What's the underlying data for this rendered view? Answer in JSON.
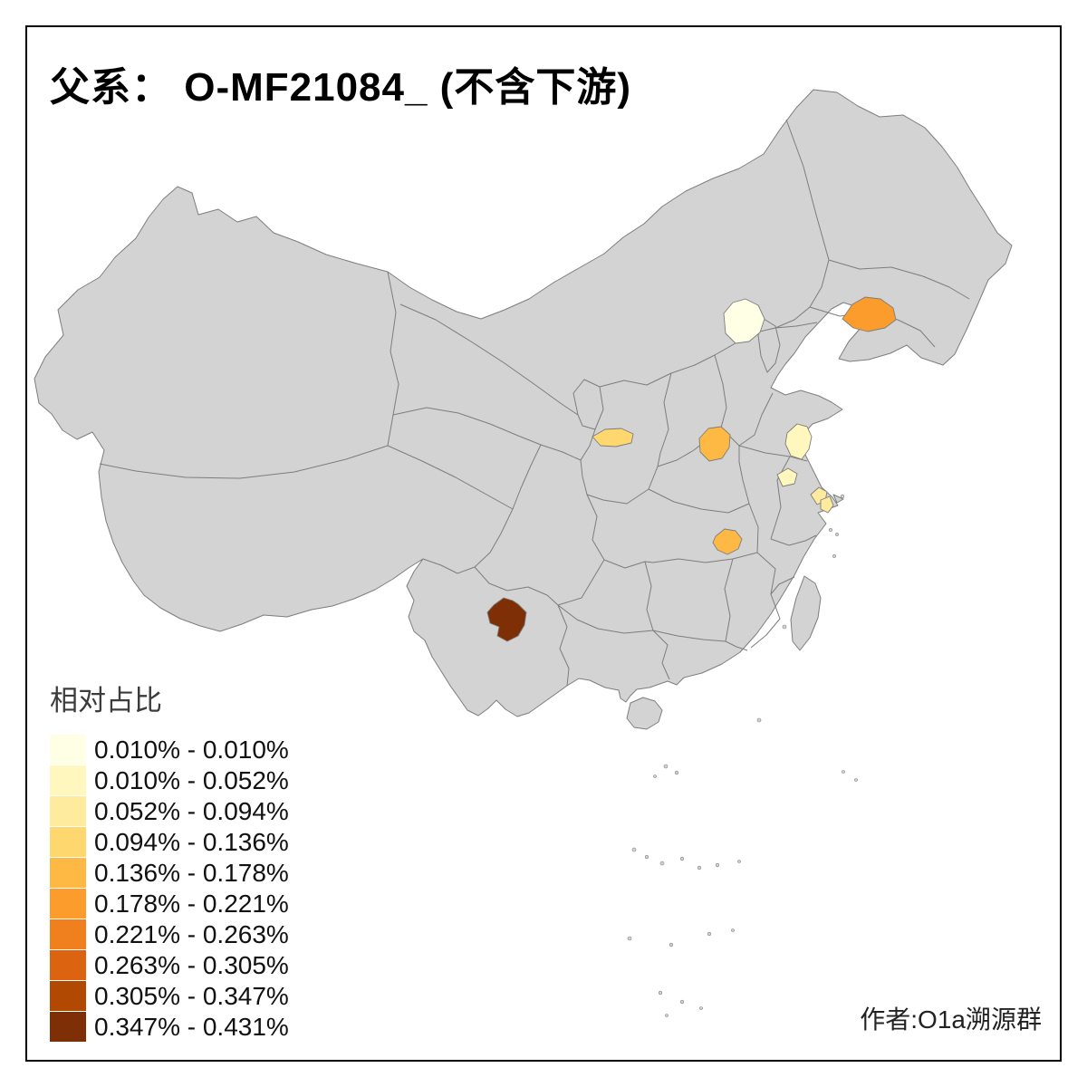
{
  "title": "父系： O-MF21084_ (不含下游)",
  "attribution": "作者:O1a溯源群",
  "legend": {
    "title": "相对占比",
    "classes": [
      {
        "label": "0.010% - 0.010%",
        "color": "#FFFFE5"
      },
      {
        "label": "0.010% - 0.052%",
        "color": "#FFF7BD"
      },
      {
        "label": "0.052% - 0.094%",
        "color": "#FEEB9E"
      },
      {
        "label": "0.094% - 0.136%",
        "color": "#FED76E"
      },
      {
        "label": "0.136% - 0.178%",
        "color": "#FEB945"
      },
      {
        "label": "0.178% - 0.221%",
        "color": "#FB9C2D"
      },
      {
        "label": "0.221% - 0.263%",
        "color": "#F07F1E"
      },
      {
        "label": "0.263% - 0.305%",
        "color": "#DC6310"
      },
      {
        "label": "0.305% - 0.347%",
        "color": "#B24903"
      },
      {
        "label": "0.347% - 0.431%",
        "color": "#7E2F05"
      }
    ]
  },
  "map": {
    "background": "#ffffff",
    "frame_color": "#000000",
    "base_fill": "#d3d3d3",
    "border_color": "#7d7d7d",
    "regions": [
      {
        "id": "beijing-area",
        "class_index": 0
      },
      {
        "id": "liaodong-coast",
        "class_index": 5
      },
      {
        "id": "south-shaanxi",
        "class_index": 3
      },
      {
        "id": "north-henan",
        "class_index": 4
      },
      {
        "id": "north-jiangsu",
        "class_index": 1
      },
      {
        "id": "central-jiangsu",
        "class_index": 1
      },
      {
        "id": "suzhou-area",
        "class_index": 2
      },
      {
        "id": "shanghai-area",
        "class_index": 2
      },
      {
        "id": "hubei-hunan-border",
        "class_index": 4
      },
      {
        "id": "central-yunnan",
        "class_index": 9
      }
    ]
  }
}
